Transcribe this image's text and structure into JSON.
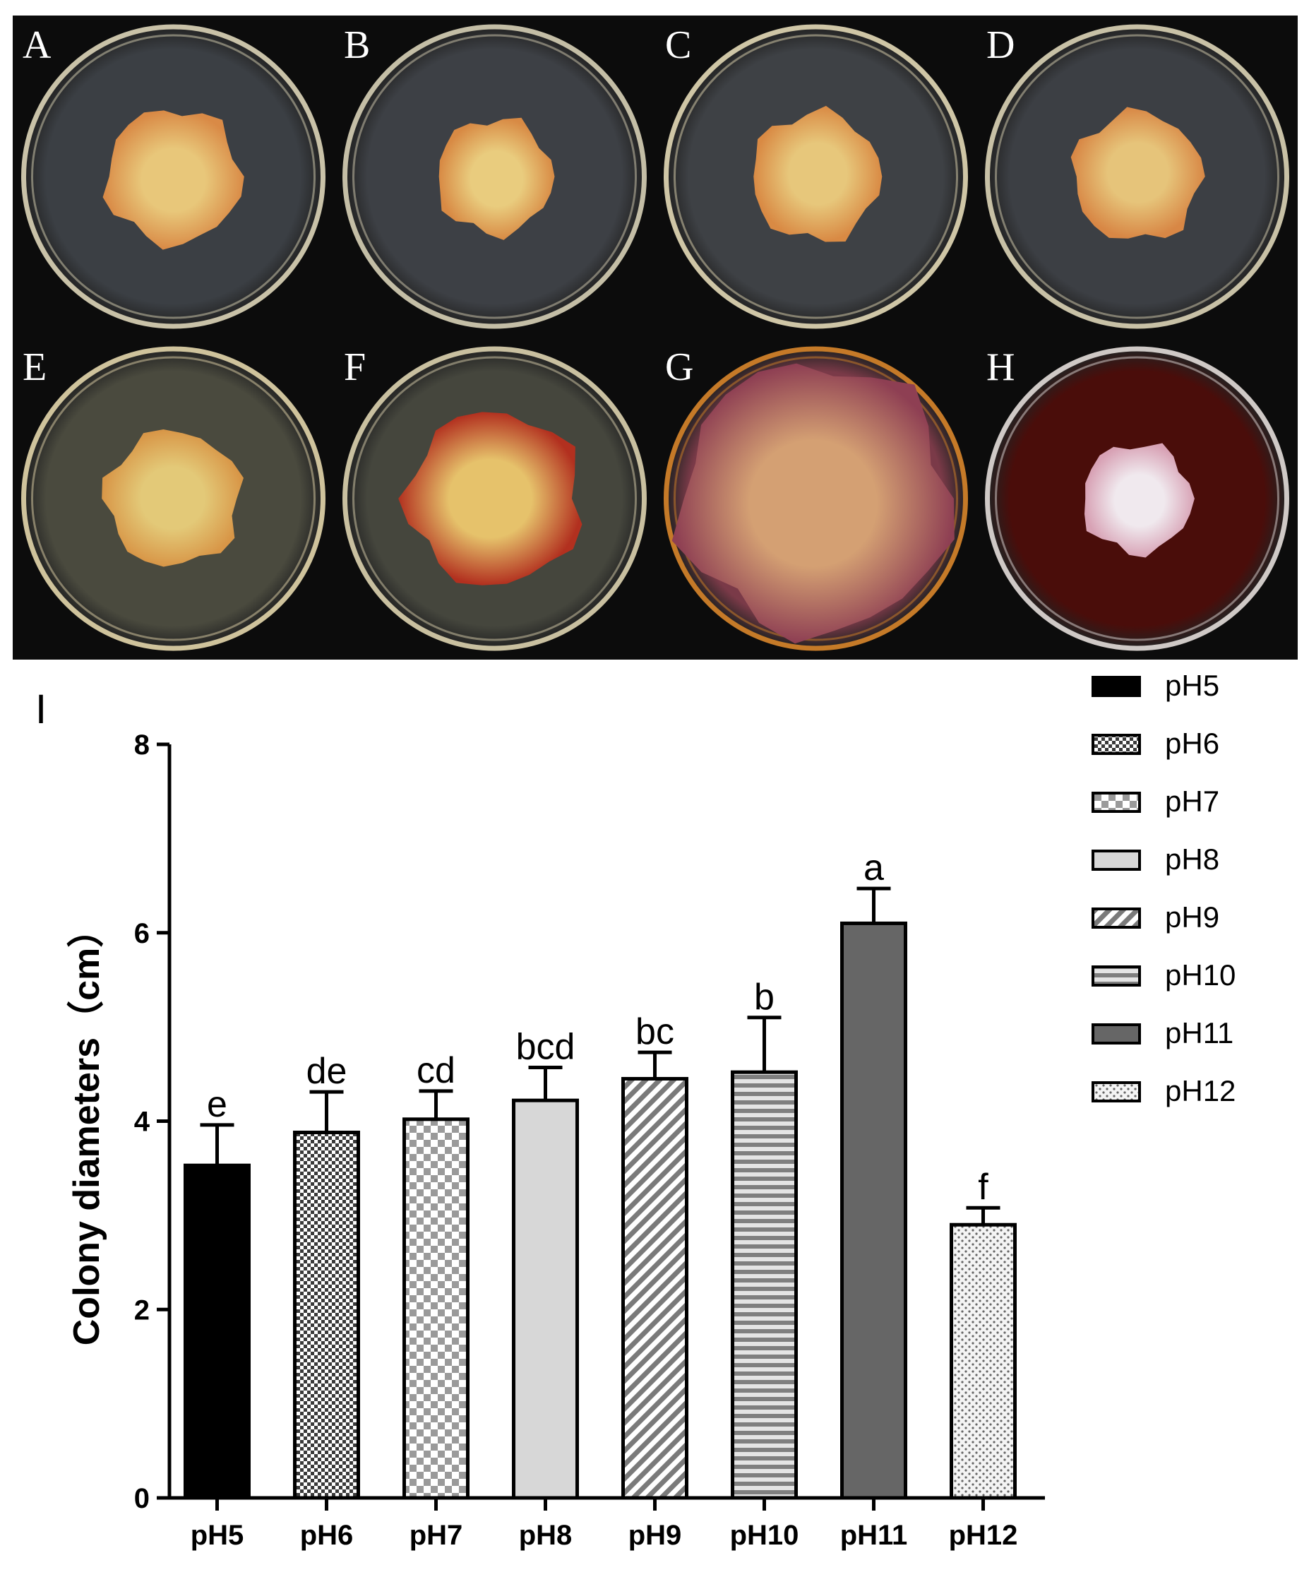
{
  "panels": [
    {
      "letter": "A",
      "agar": "#3b3f44",
      "rim": "#c9c2a8",
      "colony": "#d98a46",
      "colony_center": "#e8c77a",
      "colony_r": 0.21
    },
    {
      "letter": "B",
      "agar": "#3d4045",
      "rim": "#c4bea6",
      "colony": "#d88a44",
      "colony_center": "#e9cc7e",
      "colony_r": 0.18
    },
    {
      "letter": "C",
      "agar": "#3e4145",
      "rim": "#cfc6a6",
      "colony": "#d98a44",
      "colony_center": "#e7c77b",
      "colony_r": 0.2
    },
    {
      "letter": "D",
      "agar": "#3c3f44",
      "rim": "#c8c1a6",
      "colony": "#d88745",
      "colony_center": "#e6c47a",
      "colony_r": 0.2
    },
    {
      "letter": "E",
      "agar": "#4a4a3e",
      "rim": "#cfc39c",
      "colony": "#d89647",
      "colony_center": "#e3c978",
      "colony_r": 0.21
    },
    {
      "letter": "F",
      "agar": "#45463d",
      "rim": "#c9c0a0",
      "colony": "#b2301f",
      "colony_center": "#e6c26b",
      "colony_r": 0.27
    },
    {
      "letter": "G",
      "agar": "#7a3a48",
      "rim": "#c57a28",
      "colony": "#8e3f53",
      "colony_center": "#d4a073",
      "colony_r": 0.42
    },
    {
      "letter": "H",
      "agar": "#4a0d0a",
      "rim": "#cfc9c6",
      "colony": "#d8a2b5",
      "colony_center": "#f0e9ee",
      "colony_r": 0.17
    }
  ],
  "chart_data": {
    "type": "bar",
    "panel_label": "I",
    "ylabel": "Colony diameters（cm）",
    "xlabel": "",
    "ylim": [
      0,
      8
    ],
    "yticks": [
      0,
      2,
      4,
      6,
      8
    ],
    "categories": [
      "pH5",
      "pH6",
      "pH7",
      "pH8",
      "pH9",
      "pH10",
      "pH11",
      "pH12"
    ],
    "values": [
      3.53,
      3.88,
      4.02,
      4.22,
      4.45,
      4.52,
      6.1,
      2.9
    ],
    "errors": [
      0.43,
      0.43,
      0.3,
      0.35,
      0.28,
      0.58,
      0.37,
      0.18
    ],
    "significance": [
      "e",
      "de",
      "cd",
      "bcd",
      "bc",
      "b",
      "a",
      "f"
    ],
    "legend": [
      "pH5",
      "pH6",
      "pH7",
      "pH8",
      "pH9",
      "pH10",
      "pH11",
      "pH12"
    ],
    "legend_position": "top-right",
    "fills": [
      "solid-black",
      "fine-check",
      "checkerboard",
      "light-gray",
      "diagonal-stripes",
      "horizontal-stripes",
      "dark-gray",
      "dotted"
    ],
    "colors": {
      "pH5": "#000000",
      "pH8": "#d7d7d7",
      "pH11": "#666666"
    }
  }
}
